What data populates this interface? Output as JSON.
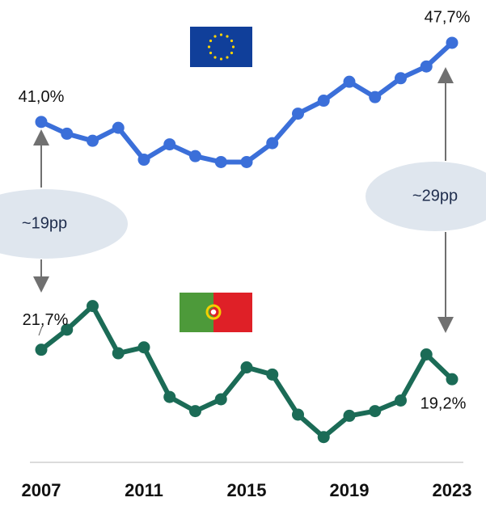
{
  "chart_data": {
    "type": "line",
    "x": [
      2007,
      2008,
      2009,
      2010,
      2011,
      2012,
      2013,
      2014,
      2015,
      2016,
      2017,
      2018,
      2019,
      2020,
      2021,
      2022,
      2023
    ],
    "xlim": [
      2007,
      2023
    ],
    "xticks": [
      2007,
      2011,
      2015,
      2019,
      2023
    ],
    "ylim": [
      12.5,
      49
    ],
    "series": [
      {
        "color": "#3b6fd9",
        "values": [
          41.0,
          40.0,
          39.4,
          40.5,
          37.8,
          39.1,
          38.1,
          37.6,
          37.6,
          39.2,
          41.7,
          42.8,
          44.4,
          43.1,
          44.7,
          45.7,
          47.7
        ],
        "value_labels": [
          "41,0%",
          null,
          null,
          null,
          null,
          null,
          null,
          null,
          null,
          null,
          null,
          null,
          null,
          null,
          null,
          null,
          "47,7%"
        ]
      },
      {
        "color": "#1b6b56",
        "values": [
          21.7,
          23.4,
          25.4,
          21.4,
          21.9,
          17.7,
          16.5,
          17.5,
          20.2,
          19.6,
          16.2,
          14.3,
          16.1,
          16.5,
          17.4,
          21.3,
          19.2
        ],
        "value_labels": [
          "21,7%",
          null,
          null,
          null,
          null,
          null,
          null,
          null,
          null,
          null,
          null,
          null,
          null,
          null,
          null,
          null,
          "19,2%"
        ]
      }
    ],
    "annotations": [
      {
        "text": "~19pp"
      },
      {
        "text": "~29pp"
      }
    ]
  }
}
